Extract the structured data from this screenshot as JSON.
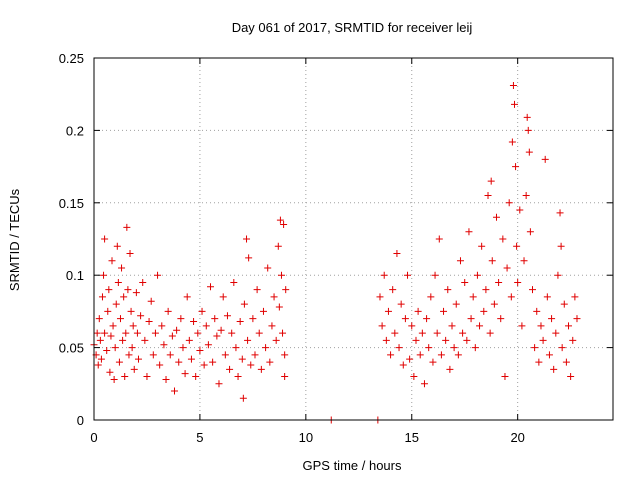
{
  "chart_data": {
    "type": "scatter",
    "title": "Day 061 of 2017, SRMTID for receiver leij",
    "xlabel": "GPS time / hours",
    "ylabel": "SRMTID / TECUs",
    "xlim": [
      0,
      24.5
    ],
    "ylim": [
      0,
      0.25
    ],
    "xticks": [
      0,
      5,
      10,
      15,
      20
    ],
    "xtick_labels": [
      "0",
      "5",
      "10",
      "15",
      "20"
    ],
    "yticks": [
      0,
      0.05,
      0.1,
      0.15,
      0.2,
      0.25
    ],
    "ytick_labels": [
      "0",
      "0.05",
      "0.1",
      "0.15",
      "0.2",
      "0.25"
    ],
    "grid": true,
    "marker": "plus",
    "color": "#e00000",
    "series": [
      {
        "name": "SRMTID",
        "points": [
          [
            0.0,
            0.052
          ],
          [
            0.1,
            0.045
          ],
          [
            0.15,
            0.06
          ],
          [
            0.2,
            0.038
          ],
          [
            0.25,
            0.07
          ],
          [
            0.3,
            0.055
          ],
          [
            0.35,
            0.042
          ],
          [
            0.4,
            0.085
          ],
          [
            0.45,
            0.1
          ],
          [
            0.5,
            0.125
          ],
          [
            0.5,
            0.06
          ],
          [
            0.6,
            0.048
          ],
          [
            0.65,
            0.075
          ],
          [
            0.7,
            0.09
          ],
          [
            0.75,
            0.033
          ],
          [
            0.8,
            0.058
          ],
          [
            0.85,
            0.11
          ],
          [
            0.9,
            0.065
          ],
          [
            0.95,
            0.028
          ],
          [
            1.0,
            0.05
          ],
          [
            1.05,
            0.08
          ],
          [
            1.1,
            0.12
          ],
          [
            1.15,
            0.095
          ],
          [
            1.2,
            0.04
          ],
          [
            1.25,
            0.07
          ],
          [
            1.3,
            0.105
          ],
          [
            1.35,
            0.055
          ],
          [
            1.4,
            0.085
          ],
          [
            1.45,
            0.03
          ],
          [
            1.5,
            0.06
          ],
          [
            1.55,
            0.133
          ],
          [
            1.6,
            0.09
          ],
          [
            1.65,
            0.045
          ],
          [
            1.7,
            0.115
          ],
          [
            1.75,
            0.075
          ],
          [
            1.8,
            0.05
          ],
          [
            1.85,
            0.065
          ],
          [
            1.9,
            0.035
          ],
          [
            2.0,
            0.088
          ],
          [
            2.05,
            0.06
          ],
          [
            2.1,
            0.042
          ],
          [
            2.2,
            0.072
          ],
          [
            2.3,
            0.095
          ],
          [
            2.4,
            0.055
          ],
          [
            2.5,
            0.03
          ],
          [
            2.6,
            0.068
          ],
          [
            2.7,
            0.082
          ],
          [
            2.8,
            0.045
          ],
          [
            2.9,
            0.06
          ],
          [
            3.0,
            0.1
          ],
          [
            3.1,
            0.038
          ],
          [
            3.2,
            0.065
          ],
          [
            3.3,
            0.052
          ],
          [
            3.4,
            0.028
          ],
          [
            3.5,
            0.075
          ],
          [
            3.6,
            0.045
          ],
          [
            3.7,
            0.058
          ],
          [
            3.8,
            0.02
          ],
          [
            3.9,
            0.062
          ],
          [
            4.0,
            0.04
          ],
          [
            4.1,
            0.07
          ],
          [
            4.2,
            0.05
          ],
          [
            4.3,
            0.032
          ],
          [
            4.4,
            0.085
          ],
          [
            4.5,
            0.055
          ],
          [
            4.6,
            0.042
          ],
          [
            4.7,
            0.068
          ],
          [
            4.8,
            0.03
          ],
          [
            4.9,
            0.06
          ],
          [
            5.0,
            0.048
          ],
          [
            5.1,
            0.075
          ],
          [
            5.2,
            0.038
          ],
          [
            5.3,
            0.065
          ],
          [
            5.4,
            0.052
          ],
          [
            5.5,
            0.092
          ],
          [
            5.6,
            0.04
          ],
          [
            5.7,
            0.07
          ],
          [
            5.8,
            0.058
          ],
          [
            5.9,
            0.025
          ],
          [
            6.0,
            0.062
          ],
          [
            6.1,
            0.085
          ],
          [
            6.2,
            0.045
          ],
          [
            6.3,
            0.072
          ],
          [
            6.4,
            0.035
          ],
          [
            6.5,
            0.06
          ],
          [
            6.6,
            0.095
          ],
          [
            6.7,
            0.05
          ],
          [
            6.8,
            0.03
          ],
          [
            6.9,
            0.068
          ],
          [
            7.0,
            0.042
          ],
          [
            7.05,
            0.015
          ],
          [
            7.1,
            0.08
          ],
          [
            7.2,
            0.125
          ],
          [
            7.25,
            0.055
          ],
          [
            7.3,
            0.112
          ],
          [
            7.4,
            0.038
          ],
          [
            7.5,
            0.07
          ],
          [
            7.6,
            0.045
          ],
          [
            7.7,
            0.09
          ],
          [
            7.8,
            0.06
          ],
          [
            7.9,
            0.035
          ],
          [
            8.0,
            0.075
          ],
          [
            8.1,
            0.05
          ],
          [
            8.2,
            0.105
          ],
          [
            8.3,
            0.04
          ],
          [
            8.4,
            0.065
          ],
          [
            8.5,
            0.085
          ],
          [
            8.6,
            0.055
          ],
          [
            8.7,
            0.12
          ],
          [
            8.75,
            0.078
          ],
          [
            8.8,
            0.138
          ],
          [
            8.85,
            0.1
          ],
          [
            8.9,
            0.06
          ],
          [
            8.95,
            0.135
          ],
          [
            9.0,
            0.03
          ],
          [
            9.0,
            0.045
          ],
          [
            9.05,
            0.09
          ],
          [
            11.2,
            0.0
          ],
          [
            13.4,
            0.0
          ],
          [
            13.5,
            0.085
          ],
          [
            13.6,
            0.065
          ],
          [
            13.7,
            0.1
          ],
          [
            13.8,
            0.055
          ],
          [
            13.9,
            0.075
          ],
          [
            14.0,
            0.045
          ],
          [
            14.1,
            0.09
          ],
          [
            14.2,
            0.06
          ],
          [
            14.3,
            0.115
          ],
          [
            14.4,
            0.05
          ],
          [
            14.5,
            0.08
          ],
          [
            14.6,
            0.038
          ],
          [
            14.7,
            0.07
          ],
          [
            14.8,
            0.1
          ],
          [
            14.9,
            0.042
          ],
          [
            15.0,
            0.065
          ],
          [
            15.1,
            0.03
          ],
          [
            15.2,
            0.055
          ],
          [
            15.3,
            0.075
          ],
          [
            15.4,
            0.045
          ],
          [
            15.5,
            0.06
          ],
          [
            15.6,
            0.025
          ],
          [
            15.7,
            0.07
          ],
          [
            15.8,
            0.05
          ],
          [
            15.9,
            0.085
          ],
          [
            16.0,
            0.04
          ],
          [
            16.1,
            0.1
          ],
          [
            16.2,
            0.06
          ],
          [
            16.3,
            0.125
          ],
          [
            16.4,
            0.045
          ],
          [
            16.5,
            0.075
          ],
          [
            16.6,
            0.055
          ],
          [
            16.7,
            0.09
          ],
          [
            16.8,
            0.035
          ],
          [
            16.9,
            0.065
          ],
          [
            17.0,
            0.05
          ],
          [
            17.1,
            0.08
          ],
          [
            17.2,
            0.045
          ],
          [
            17.3,
            0.11
          ],
          [
            17.4,
            0.06
          ],
          [
            17.5,
            0.095
          ],
          [
            17.6,
            0.055
          ],
          [
            17.7,
            0.13
          ],
          [
            17.8,
            0.07
          ],
          [
            17.9,
            0.085
          ],
          [
            18.0,
            0.05
          ],
          [
            18.1,
            0.1
          ],
          [
            18.2,
            0.065
          ],
          [
            18.3,
            0.12
          ],
          [
            18.4,
            0.075
          ],
          [
            18.5,
            0.09
          ],
          [
            18.6,
            0.155
          ],
          [
            18.7,
            0.06
          ],
          [
            18.75,
            0.165
          ],
          [
            18.8,
            0.11
          ],
          [
            18.9,
            0.08
          ],
          [
            19.0,
            0.14
          ],
          [
            19.1,
            0.095
          ],
          [
            19.2,
            0.07
          ],
          [
            19.3,
            0.125
          ],
          [
            19.4,
            0.03
          ],
          [
            19.5,
            0.105
          ],
          [
            19.6,
            0.15
          ],
          [
            19.7,
            0.085
          ],
          [
            19.75,
            0.192
          ],
          [
            19.8,
            0.231
          ],
          [
            19.85,
            0.218
          ],
          [
            19.9,
            0.175
          ],
          [
            19.95,
            0.12
          ],
          [
            20.0,
            0.095
          ],
          [
            20.1,
            0.145
          ],
          [
            20.2,
            0.065
          ],
          [
            20.3,
            0.11
          ],
          [
            20.4,
            0.155
          ],
          [
            20.45,
            0.209
          ],
          [
            20.5,
            0.2
          ],
          [
            20.55,
            0.185
          ],
          [
            20.6,
            0.13
          ],
          [
            20.7,
            0.09
          ],
          [
            20.8,
            0.05
          ],
          [
            20.9,
            0.075
          ],
          [
            21.0,
            0.04
          ],
          [
            21.1,
            0.065
          ],
          [
            21.2,
            0.055
          ],
          [
            21.3,
            0.18
          ],
          [
            21.4,
            0.085
          ],
          [
            21.5,
            0.045
          ],
          [
            21.6,
            0.07
          ],
          [
            21.7,
            0.035
          ],
          [
            21.8,
            0.06
          ],
          [
            21.9,
            0.1
          ],
          [
            22.0,
            0.143
          ],
          [
            22.05,
            0.12
          ],
          [
            22.1,
            0.05
          ],
          [
            22.2,
            0.08
          ],
          [
            22.3,
            0.04
          ],
          [
            22.4,
            0.065
          ],
          [
            22.5,
            0.03
          ],
          [
            22.6,
            0.055
          ],
          [
            22.7,
            0.085
          ],
          [
            22.8,
            0.07
          ]
        ]
      }
    ]
  }
}
